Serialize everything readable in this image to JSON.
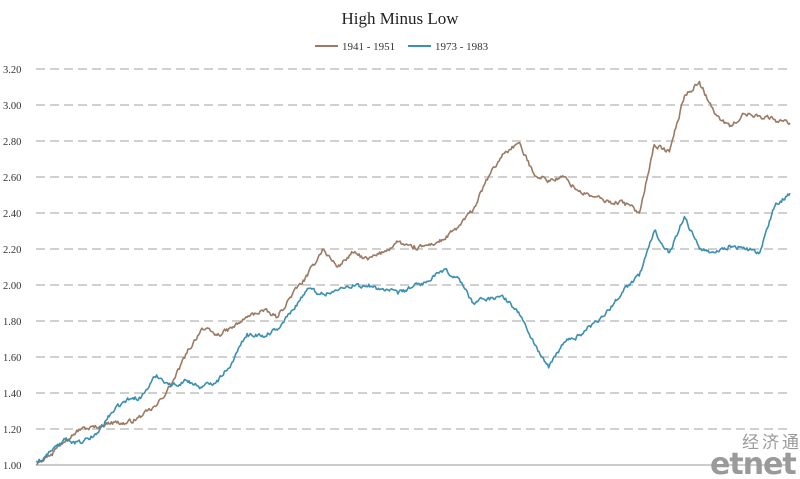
{
  "chart_data": {
    "type": "line",
    "title": "High Minus Low",
    "xlabel": "",
    "ylabel": "",
    "ylim": [
      1.0,
      3.2
    ],
    "yticks": [
      "1.00",
      "1.20",
      "1.40",
      "1.60",
      "1.80",
      "2.00",
      "2.20",
      "2.40",
      "2.60",
      "2.80",
      "3.00",
      "3.20"
    ],
    "x": [
      0,
      2,
      4,
      6,
      8,
      10,
      12,
      14,
      16,
      18,
      20,
      22,
      24,
      26,
      28,
      30,
      32,
      34,
      36,
      38,
      40,
      42,
      44,
      46,
      48,
      50,
      52,
      54,
      56,
      58,
      60,
      62,
      64,
      66,
      68,
      70,
      72,
      74,
      76,
      78,
      80,
      82,
      84,
      86,
      88,
      90,
      92,
      94,
      96,
      98,
      100
    ],
    "grid": true,
    "legend_position": "top-center",
    "series": [
      {
        "name": "1941 - 1951",
        "color": "#9c7a63",
        "values": [
          1.02,
          1.06,
          1.15,
          1.2,
          1.21,
          1.24,
          1.23,
          1.27,
          1.33,
          1.45,
          1.62,
          1.76,
          1.72,
          1.76,
          1.82,
          1.86,
          1.82,
          1.95,
          2.05,
          2.2,
          2.1,
          2.18,
          2.14,
          2.18,
          2.24,
          2.2,
          2.22,
          2.25,
          2.32,
          2.42,
          2.6,
          2.73,
          2.79,
          2.62,
          2.58,
          2.6,
          2.52,
          2.49,
          2.46,
          2.46,
          2.4,
          2.78,
          2.74,
          3.05,
          3.13,
          2.95,
          2.88,
          2.95,
          2.94,
          2.92,
          2.9
        ]
      },
      {
        "name": "1973 - 1983",
        "color": "#3b8fb0",
        "values": [
          1.0,
          1.08,
          1.14,
          1.12,
          1.17,
          1.29,
          1.36,
          1.38,
          1.5,
          1.44,
          1.47,
          1.43,
          1.47,
          1.57,
          1.73,
          1.72,
          1.75,
          1.86,
          1.98,
          1.95,
          1.97,
          2.0,
          1.99,
          1.98,
          1.95,
          1.99,
          2.02,
          2.08,
          2.04,
          1.9,
          1.93,
          1.93,
          1.85,
          1.68,
          1.54,
          1.68,
          1.72,
          1.79,
          1.86,
          1.98,
          2.05,
          2.3,
          2.18,
          2.38,
          2.2,
          2.18,
          2.22,
          2.2,
          2.18,
          2.44,
          2.51
        ]
      }
    ]
  },
  "watermark": {
    "chinese": "经济通",
    "english": "etnet"
  }
}
